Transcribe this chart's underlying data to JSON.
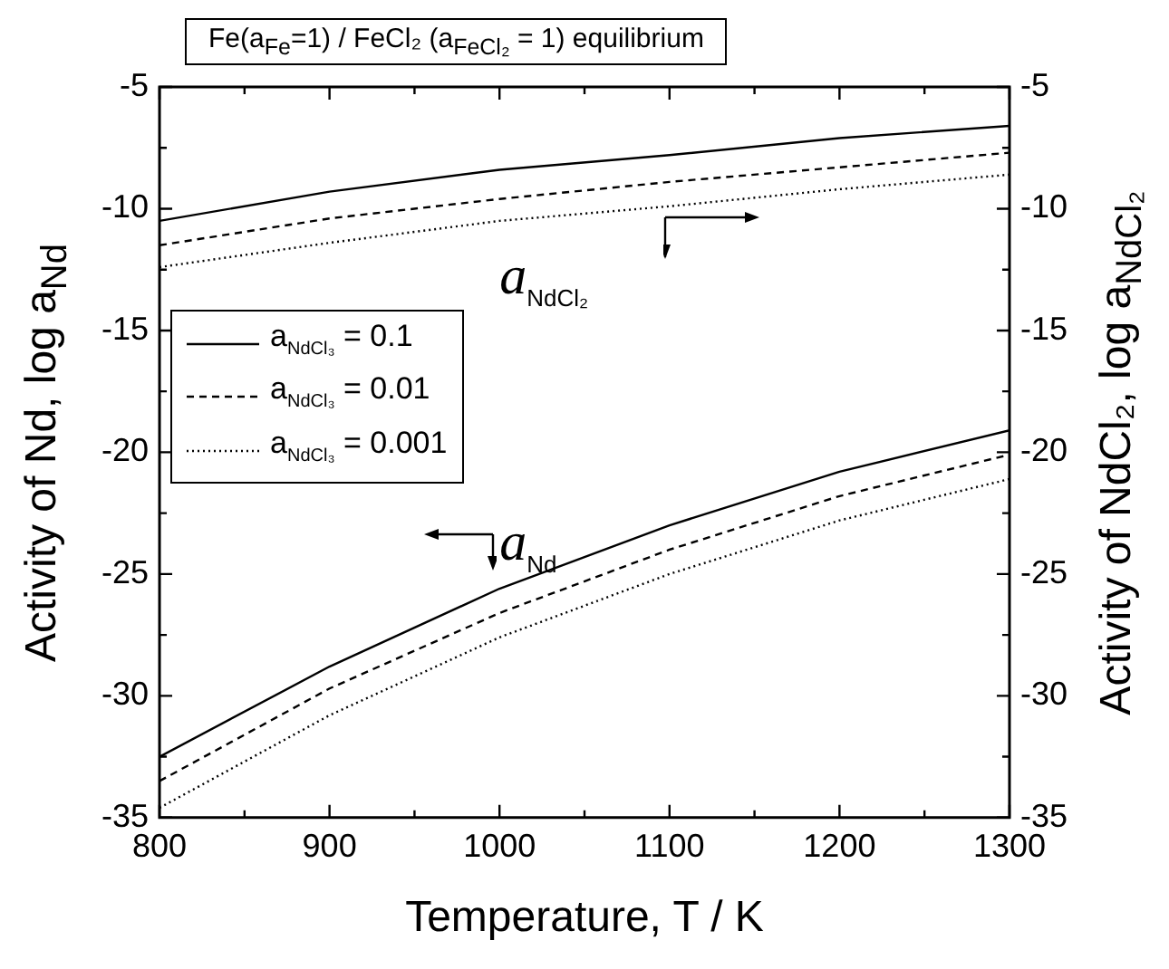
{
  "chart_data": {
    "type": "line",
    "title": "Fe(a$_{Fe}$=1) / FeCl₂ (a$_{FeCl₂}$ = 1) equilibrium",
    "xlabel": "Temperature, T / K",
    "ylabel": "Activity of Nd, log a$_{Nd}$",
    "y2label": "Activity of NdCl₂, log a$_{NdCl₂}$",
    "x": [
      800,
      900,
      1000,
      1100,
      1200,
      1300
    ],
    "series": [
      {
        "name": "a$_{NdCl₃}$ =  0.1",
        "color": "#000000",
        "line_style": "solid",
        "values": [
          -32.5,
          -28.8,
          -25.6,
          -23.0,
          -20.8,
          -19.1
        ]
      },
      {
        "name": "a$_{NdCl₃}$ =  0.01",
        "color": "#000000",
        "line_style": "dashed",
        "values": [
          -33.5,
          -29.7,
          -26.6,
          -24.0,
          -21.8,
          -20.1
        ]
      },
      {
        "name": "a$_{NdCl₃}$ =  0.001",
        "color": "#000000",
        "line_style": "dotted",
        "values": [
          -34.6,
          -30.8,
          -27.6,
          -25.0,
          -22.8,
          -21.1
        ]
      },
      {
        "color": "#000000",
        "line_style": "solid",
        "axis": "y2",
        "values": [
          -10.5,
          -9.3,
          -8.4,
          -7.8,
          -7.1,
          -6.6
        ]
      },
      {
        "color": "#000000",
        "line_style": "dashed",
        "axis": "y2",
        "values": [
          -11.5,
          -10.4,
          -9.6,
          -8.9,
          -8.3,
          -7.7
        ]
      },
      {
        "color": "#000000",
        "line_style": "dotted",
        "axis": "y2",
        "values": [
          -12.4,
          -11.4,
          -10.5,
          -9.9,
          -9.2,
          -8.6
        ]
      }
    ],
    "annotations": [
      "a$_{NdCl₂}$",
      "a$_{Nd}$"
    ],
    "xlim": [
      800,
      1300
    ],
    "xticks": [
      800,
      {
        "value": 850,
        "label": null
      },
      900,
      {
        "value": 950,
        "label": null
      },
      1000,
      {
        "value": 1050,
        "label": null
      },
      1100,
      {
        "value": 1150,
        "label": null
      },
      1200,
      {
        "value": 1250,
        "label": null
      },
      1300
    ],
    "ylim": [
      -35,
      -5
    ],
    "yticks": [
      -35,
      {
        "value": -32.5,
        "label": null
      },
      -30,
      {
        "value": -27.5,
        "label": null
      },
      -25,
      {
        "value": -22.5,
        "label": null
      },
      -20,
      {
        "value": -17.5,
        "label": null
      },
      -15,
      {
        "value": -12.5,
        "label": null
      },
      -10,
      {
        "value": -7.5,
        "label": null
      },
      -5
    ],
    "y2lim": [
      -35,
      -5
    ],
    "y2ticks": [
      -35,
      {
        "value": -32.5,
        "label": null
      },
      -30,
      {
        "value": -27.5,
        "label": null
      },
      -25,
      {
        "value": -22.5,
        "label": null
      },
      -20,
      {
        "value": -17.5,
        "label": null
      },
      -15,
      {
        "value": -12.5,
        "label": null
      },
      -10,
      {
        "value": -7.5,
        "label": null
      },
      -5
    ],
    "marker": "none",
    "legend": "left"
  }
}
